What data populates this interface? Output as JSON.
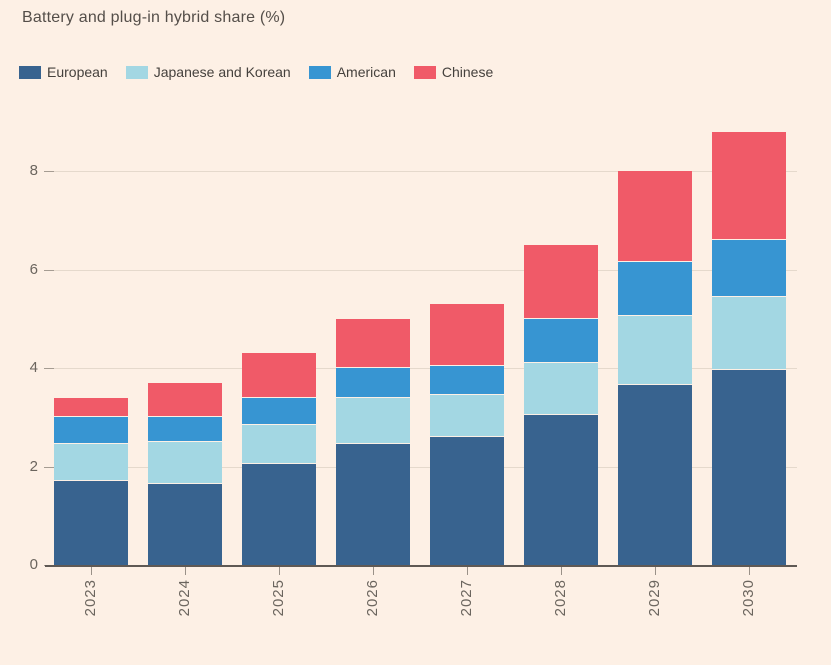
{
  "title": "Battery and plug-in hybrid share (%)",
  "colors": {
    "background": "#FDF0E5",
    "gridline": "#E5D9CC",
    "y_tick": "#A59C92",
    "axis_line": "#5F5954",
    "x_tick": "#9A9188",
    "title_text": "#544E49",
    "legend_text": "#45413D",
    "axis_text": "#6B655E"
  },
  "legend": {
    "position": "top",
    "items": [
      {
        "label": "European",
        "color": "#38638F"
      },
      {
        "label": "Japanese and Korean",
        "color": "#A3D7E3"
      },
      {
        "label": "American",
        "color": "#3795D2"
      },
      {
        "label": "Chinese",
        "color": "#F05A68"
      }
    ]
  },
  "chart_data": {
    "type": "bar",
    "stacked": true,
    "title": "Battery and plug-in hybrid share (%)",
    "xlabel": "",
    "ylabel": "",
    "categories": [
      "2023",
      "2024",
      "2025",
      "2026",
      "2027",
      "2028",
      "2029",
      "2030"
    ],
    "series": [
      {
        "name": "European",
        "color": "#38638F",
        "values": [
          1.7,
          1.65,
          2.05,
          2.45,
          2.6,
          3.05,
          3.65,
          3.95
        ]
      },
      {
        "name": "Japanese and Korean",
        "color": "#A3D7E3",
        "values": [
          0.75,
          0.85,
          0.8,
          0.95,
          0.85,
          1.05,
          1.4,
          1.5
        ]
      },
      {
        "name": "American",
        "color": "#3795D2",
        "values": [
          0.55,
          0.5,
          0.55,
          0.6,
          0.6,
          0.9,
          1.1,
          1.15
        ]
      },
      {
        "name": "Chinese",
        "color": "#F05A68",
        "values": [
          0.4,
          0.7,
          0.9,
          1.0,
          1.25,
          1.5,
          1.85,
          2.2
        ]
      }
    ],
    "totals": [
      3.4,
      3.7,
      4.3,
      5.0,
      5.3,
      6.5,
      8.0,
      8.8
    ],
    "y_ticks": [
      0,
      2,
      4,
      6,
      8
    ],
    "ylim": [
      0,
      9
    ],
    "grid": "horizontal",
    "legend_position": "top"
  }
}
